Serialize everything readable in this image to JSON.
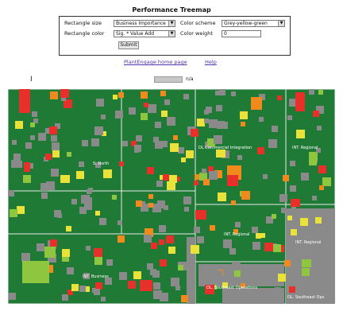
{
  "page": {
    "title": "Performance Treemap"
  },
  "form": {
    "rect_size_label": "Rectangle size",
    "rect_size_value": "Business Importance",
    "color_scheme_label": "Color scheme",
    "color_scheme_value": "Grey-yellow-green",
    "rect_color_label": "Rectangle color",
    "rect_color_value": "Sig. * Value Add",
    "color_weight_label": "Color weight",
    "color_weight_value": "0",
    "submit_label": "Submit"
  },
  "links": {
    "home": "PlantEngage home page",
    "help": "Help"
  },
  "zoom": {
    "label": "n/a"
  },
  "treemap": {
    "colors": {
      "green": "#1f7a36",
      "grey": "#8a8a8a",
      "light_green": "#8fc63f",
      "yellow": "#e8e23a",
      "orange": "#f08a1c",
      "red": "#e8302a",
      "border": "#e9e9e9"
    },
    "labels": [
      "S. North",
      "DL Commercial Integration",
      "INT. Regional",
      "INT. Regional",
      "INT. Regional",
      "INT. Business",
      "DL. Southeast Operations",
      "DL. Southeast Ops"
    ]
  }
}
